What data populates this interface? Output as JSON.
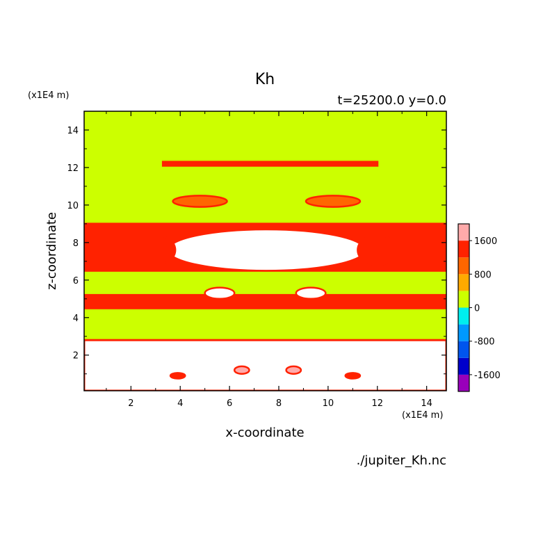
{
  "chart_data": {
    "type": "heatmap",
    "title": "Kh",
    "subtitle": "t=25200.0 y=0.0",
    "xlabel": "x-coordinate",
    "ylabel": "z-coordinate",
    "x_unit": "(x1E4 m)",
    "y_unit": "(x1E4 m)",
    "xlim": [
      0.1,
      14.8
    ],
    "ylim": [
      0.1,
      15
    ],
    "x_ticks": [
      2,
      4,
      6,
      8,
      10,
      12,
      14
    ],
    "y_ticks": [
      2,
      4,
      6,
      8,
      10,
      12,
      14
    ],
    "colorbar": {
      "levels": [
        -2000,
        -1600,
        -1200,
        -800,
        -400,
        0,
        400,
        800,
        1200,
        1600,
        2000
      ],
      "colors": [
        "#9900bb",
        "#0000cc",
        "#0055ee",
        "#0099ff",
        "#00eeee",
        "#ccff00",
        "#ffaa00",
        "#ff6600",
        "#ff2200",
        "#ffaaaa"
      ],
      "tick_labels": [
        "1600",
        "800",
        "0",
        "-800",
        "-1600"
      ],
      "tick_values": [
        1600,
        800,
        0,
        -800,
        -1600
      ]
    },
    "background_value": 200,
    "features": [
      {
        "shape": "band",
        "x0": 0.1,
        "x1": 14.8,
        "z0": 0.1,
        "z1": 2.8,
        "value": 2200
      },
      {
        "shape": "band",
        "x0": 0.1,
        "x1": 14.8,
        "z0": 6.5,
        "z1": 9.0,
        "value": 1400
      },
      {
        "shape": "band",
        "x0": 0.1,
        "x1": 14.8,
        "z0": 4.5,
        "z1": 5.2,
        "value": 1400
      },
      {
        "shape": "band",
        "x0": 3.3,
        "x1": 12.0,
        "z0": 12.1,
        "z1": 12.3,
        "value": 1400
      },
      {
        "shape": "blob",
        "x": 7.5,
        "z": 7.6,
        "rx": 4.0,
        "rz": 1.1,
        "value": 2200
      },
      {
        "shape": "blob",
        "x": 5.6,
        "z": 5.3,
        "rx": 0.6,
        "rz": 0.3,
        "value": 2200
      },
      {
        "shape": "blob",
        "x": 9.3,
        "z": 5.3,
        "rx": 0.6,
        "rz": 0.3,
        "value": 2200
      },
      {
        "shape": "blob",
        "x": 6.5,
        "z": 1.2,
        "rx": 0.3,
        "rz": 0.2,
        "value": 1800
      },
      {
        "shape": "blob",
        "x": 8.6,
        "z": 1.2,
        "rx": 0.3,
        "rz": 0.2,
        "value": 1800
      },
      {
        "shape": "blob",
        "x": 3.9,
        "z": 0.9,
        "rx": 0.3,
        "rz": 0.15,
        "value": 1400
      },
      {
        "shape": "blob",
        "x": 11.0,
        "z": 0.9,
        "rx": 0.3,
        "rz": 0.15,
        "value": 1400
      },
      {
        "shape": "blob",
        "x": 3.0,
        "z": 7.6,
        "rx": 0.8,
        "rz": 0.8,
        "value": 1400
      },
      {
        "shape": "blob",
        "x": 12.0,
        "z": 7.6,
        "rx": 0.8,
        "rz": 0.8,
        "value": 1400
      },
      {
        "shape": "blob",
        "x": 4.8,
        "z": 10.2,
        "rx": 1.1,
        "rz": 0.3,
        "value": 1000
      },
      {
        "shape": "blob",
        "x": 10.2,
        "z": 10.2,
        "rx": 1.1,
        "rz": 0.3,
        "value": 1000
      }
    ],
    "source_label": "./jupiter_Kh.nc"
  }
}
